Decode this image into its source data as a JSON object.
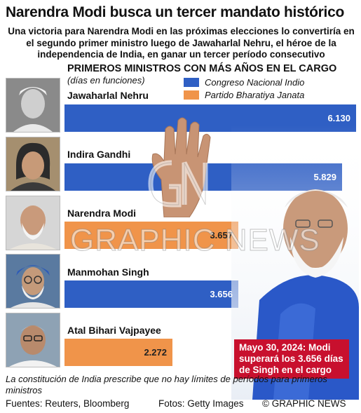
{
  "header": {
    "title": "Narendra Modi busca un tercer mandato histórico",
    "subtitle": "Una victoria para Narendra Modi en las próximas elecciones lo convertiría en el segundo primer ministro luego de Jawaharlal Nehru, el héroe de la independencia de India, en ganar un tercer período consecutivo"
  },
  "chart_data": {
    "type": "bar",
    "orientation": "horizontal",
    "title": "PRIMEROS MINISTROS CON MÁS AÑOS EN EL CARGO",
    "unit_label": "(días en funciones)",
    "categories": [
      "Jawaharlal Nehru",
      "Indira Gandhi",
      "Narendra Modi",
      "Manmohan Singh",
      "Atal Bihari Vajpayee"
    ],
    "values": [
      6130,
      5829,
      3657,
      3656,
      2272
    ],
    "value_labels": [
      "6.130",
      "5.829",
      "3.657",
      "3.656",
      "2.272"
    ],
    "party": [
      "Congreso Nacional Indio",
      "Congreso Nacional Indio",
      "Partido Bharatiya Janata",
      "Congreso Nacional Indio",
      "Partido Bharatiya Janata"
    ],
    "legend": [
      {
        "name": "Congreso Nacional Indio",
        "color": "#2f5fc4"
      },
      {
        "name": "Partido Bharatiya Janata",
        "color": "#f0944a"
      }
    ],
    "xlim": [
      0,
      6130
    ],
    "grid": false,
    "legend_position": "top-right"
  },
  "callout": {
    "text": "Mayo 30, 2024: Modi superará los 3.656 días de Singh en el cargo"
  },
  "footnote": "La constitución de India prescribe que no hay límites de períodos para primeros ministros",
  "footer": {
    "sources": "Fuentes: Reuters, Bloomberg",
    "photos": "Fotos: Getty Images",
    "copyright": "© GRAPHIC NEWS"
  },
  "watermark": "GRAPHIC NEWS",
  "colors": {
    "congress": "#2f5fc4",
    "bjp": "#f0944a",
    "callout": "#c8102e"
  }
}
